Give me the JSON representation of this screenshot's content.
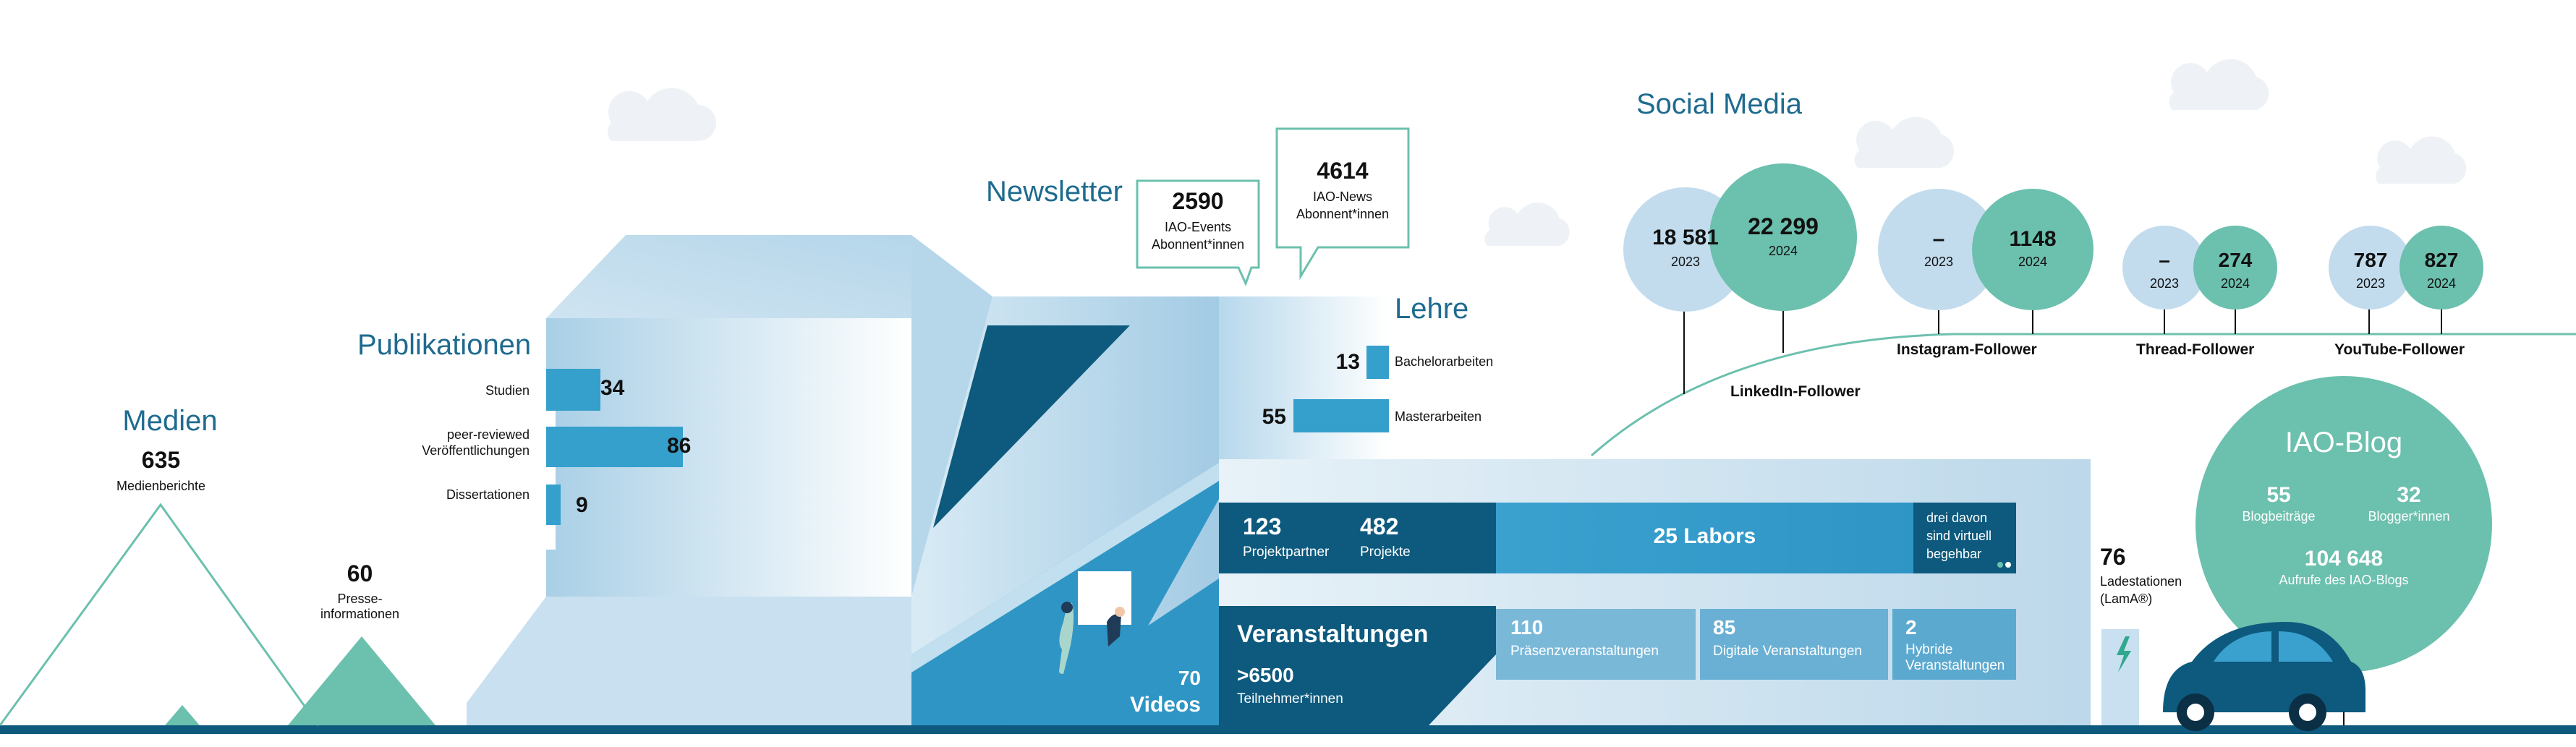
{
  "medien": {
    "title": "Medien",
    "berichte_value": "635",
    "berichte_label": "Medienberichte",
    "presse_value": "60",
    "presse_label_1": "Presse-",
    "presse_label_2": "informationen"
  },
  "publikationen": {
    "title": "Publikationen",
    "items": [
      {
        "label": "Studien",
        "value": 34
      },
      {
        "label_1": "peer-reviewed",
        "label_2": "Veröffentlichungen",
        "value": 86
      },
      {
        "label": "Dissertationen",
        "value": 9
      }
    ]
  },
  "newsletter": {
    "title": "Newsletter",
    "events_value": "2590",
    "events_label_1": "IAO-Events",
    "events_label_2": "Abonnent*innen",
    "news_value": "4614",
    "news_label_1": "IAO-News",
    "news_label_2": "Abonnent*innen"
  },
  "lehre": {
    "title": "Lehre",
    "items": [
      {
        "label": "Bachelorarbeiten",
        "value": 13
      },
      {
        "label": "Masterarbeiten",
        "value": 55
      }
    ]
  },
  "projekte": {
    "partner_value": "123",
    "partner_label": "Projektpartner",
    "projekte_value": "482",
    "projekte_label": "Projekte"
  },
  "labors": {
    "label": "25 Labors",
    "virtual_1": "drei davon",
    "virtual_2": "sind virtuell",
    "virtual_3": "begehbar"
  },
  "veranstaltungen": {
    "title": "Veranstaltungen",
    "teilnehmer_value": ">6500",
    "teilnehmer_label": "Teilnehmer*innen",
    "items": [
      {
        "value": "110",
        "label_1": "Präsenzveranstaltungen"
      },
      {
        "value": "85",
        "label_1": "Digitale Veranstaltungen"
      },
      {
        "value": "2",
        "label_1": "Hybride",
        "label_2": "Veranstaltungen"
      }
    ]
  },
  "videos": {
    "value": "70",
    "label": "Videos"
  },
  "ladestationen": {
    "value": "76",
    "label_1": "Ladestationen",
    "label_2": "(LamA®)"
  },
  "social_media": {
    "title": "Social Media",
    "platforms": [
      {
        "name": "LinkedIn-Follower",
        "v2023": "18 581",
        "y2023": "2023",
        "v2024": "22 299",
        "y2024": "2024"
      },
      {
        "name": "Instagram-Follower",
        "v2023": "–",
        "y2023": "2023",
        "v2024": "1148",
        "y2024": "2024"
      },
      {
        "name": "Thread-Follower",
        "v2023": "–",
        "y2023": "2023",
        "v2024": "274",
        "y2024": "2024"
      },
      {
        "name": "YouTube-Follower",
        "v2023": "787",
        "y2023": "2023",
        "v2024": "827",
        "y2024": "2024"
      }
    ]
  },
  "blog": {
    "title": "IAO-Blog",
    "beitraege_value": "55",
    "beitraege_label": "Blogbeiträge",
    "blogger_value": "32",
    "blogger_label": "Blogger*innen",
    "aufrufe_value": "104 648",
    "aufrufe_label": "Aufrufe des IAO-Blogs"
  },
  "colors": {
    "dark_blue": "#0d5a7e",
    "mid_blue": "#35a0cc",
    "light_blue": "#b9d9ec",
    "green": "#6cc0ae",
    "section_title": "#1f6b8f"
  }
}
